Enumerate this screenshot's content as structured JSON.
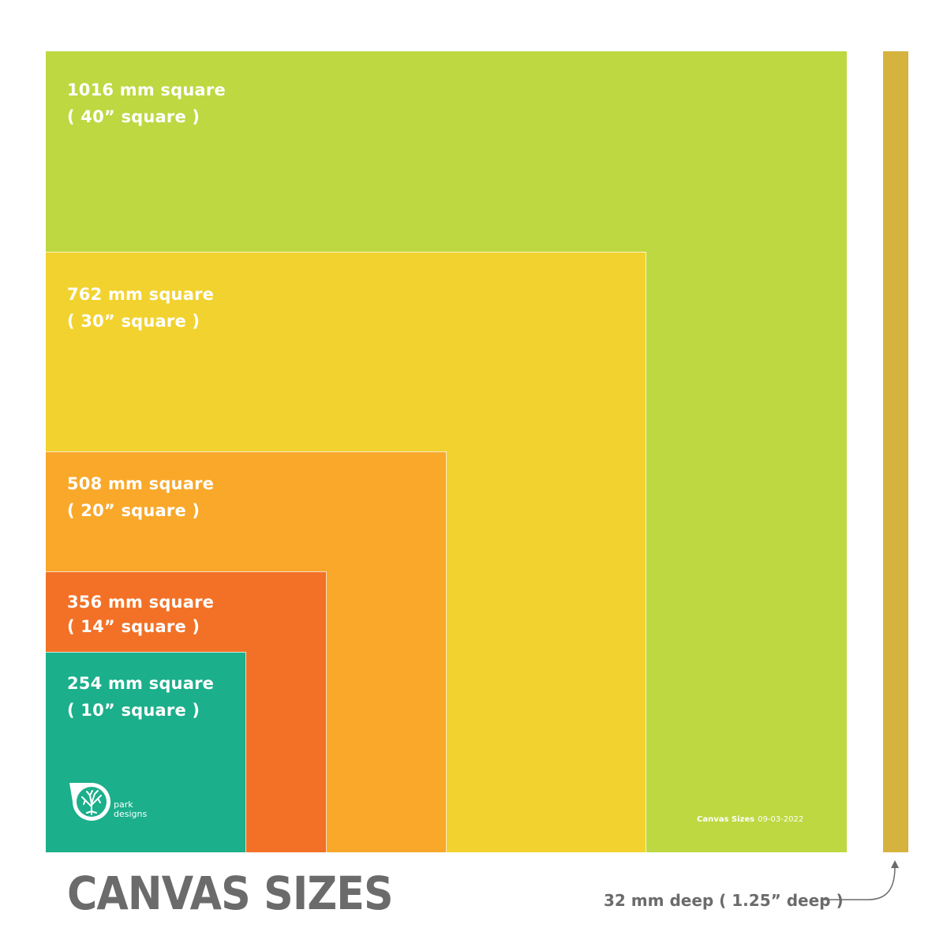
{
  "title": "CANVAS SIZES",
  "depth_label": "32 mm deep ( 1.25” deep )",
  "stamp": {
    "name": "Canvas Sizes",
    "date": "09-03-2022"
  },
  "logo": {
    "line1": "park",
    "line2": "designs",
    "icon": "tree-icon"
  },
  "sizes": [
    {
      "metric": "1016 mm square",
      "imperial": "( 40” square )",
      "mm": 1016,
      "color": "#bdd841"
    },
    {
      "metric": "762 mm square",
      "imperial": "( 30” square )",
      "mm": 762,
      "color": "#f2d22e"
    },
    {
      "metric": "508 mm square",
      "imperial": "( 20” square )",
      "mm": 508,
      "color": "#f9a82a"
    },
    {
      "metric": "356 mm square",
      "imperial": "( 14” square )",
      "mm": 356,
      "color": "#f27126"
    },
    {
      "metric": "254 mm square",
      "imperial": "( 10” square )",
      "mm": 254,
      "color": "#1baf8b"
    }
  ],
  "depth": {
    "mm": 32,
    "color": "#d6b33e"
  },
  "text_color": "#6b6b6b"
}
